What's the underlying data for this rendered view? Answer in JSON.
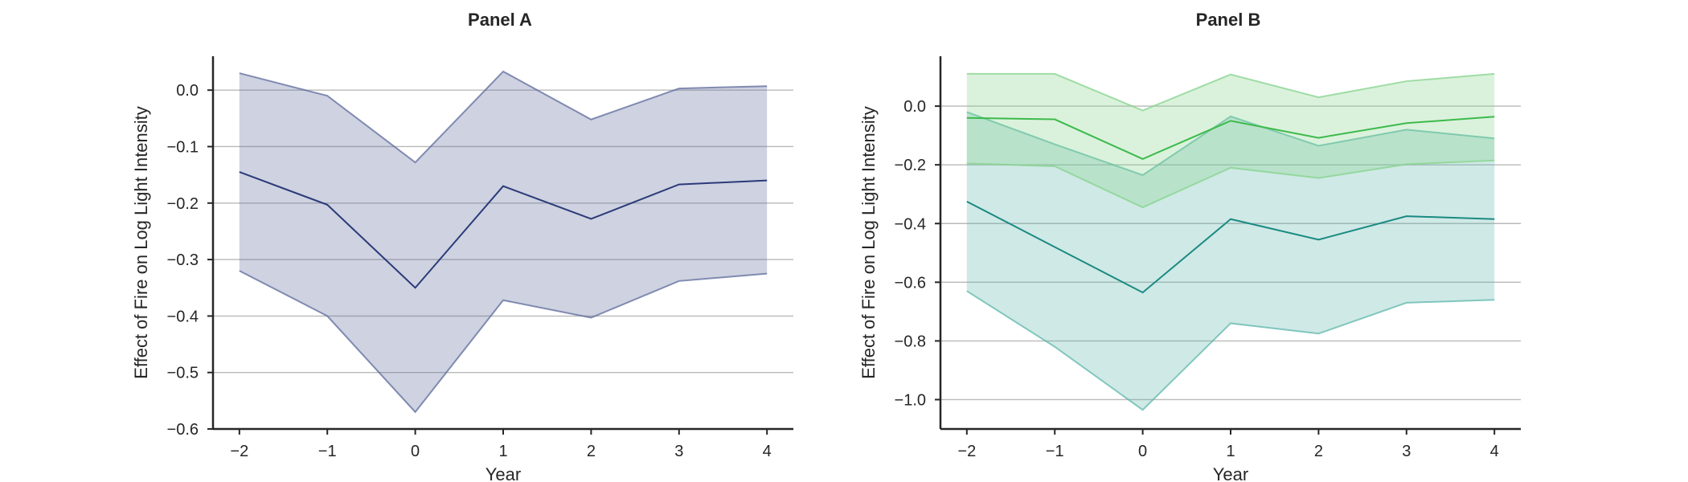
{
  "chart_data": [
    {
      "type": "line",
      "title": "Panel A",
      "xlabel": "Year",
      "ylabel": "Effect of Fire on Log Light Intensity",
      "x": [
        -2,
        -1,
        0,
        1,
        2,
        3,
        4
      ],
      "xticks": [
        "−2",
        "−1",
        "0",
        "1",
        "2",
        "3",
        "4"
      ],
      "yticks": [
        0.0,
        -0.1,
        -0.2,
        -0.3,
        -0.4,
        -0.5,
        -0.6
      ],
      "ytick_labels": [
        "0.0",
        "−0.1",
        "−0.2",
        "−0.3",
        "−0.4",
        "−0.5",
        "−0.6"
      ],
      "ylim": [
        -0.6,
        0.06
      ],
      "xlim": [
        -2.3,
        4.3
      ],
      "grid": "horizontal",
      "series": [
        {
          "color": "#2b3a78",
          "band_color": "#5d6b9b",
          "values": [
            -0.145,
            -0.203,
            -0.35,
            -0.17,
            -0.228,
            -0.167,
            -0.16
          ],
          "lower": [
            -0.32,
            -0.4,
            -0.57,
            -0.372,
            -0.403,
            -0.338,
            -0.325
          ],
          "upper": [
            0.03,
            -0.01,
            -0.128,
            0.033,
            -0.052,
            0.003,
            0.007
          ]
        }
      ]
    },
    {
      "type": "line",
      "title": "Panel B",
      "xlabel": "Year",
      "ylabel": "Effect of Fire on Log Light Intensity",
      "x": [
        -2,
        -1,
        0,
        1,
        2,
        3,
        4
      ],
      "xticks": [
        "−2",
        "−1",
        "0",
        "1",
        "2",
        "3",
        "4"
      ],
      "yticks": [
        0.0,
        -0.2,
        -0.4,
        -0.6,
        -0.8,
        -1.0
      ],
      "ytick_labels": [
        "0.0",
        "−0.2",
        "−0.4",
        "−0.6",
        "−0.8",
        "−1.0"
      ],
      "ylim": [
        -1.1,
        0.17
      ],
      "xlim": [
        -2.3,
        4.3
      ],
      "grid": "horizontal",
      "series": [
        {
          "color": "#1a8a82",
          "band_color": "#5fb7ac",
          "values": [
            -0.325,
            -0.48,
            -0.635,
            -0.385,
            -0.455,
            -0.375,
            -0.385
          ],
          "lower": [
            -0.63,
            -0.82,
            -1.035,
            -0.74,
            -0.775,
            -0.67,
            -0.66
          ],
          "upper": [
            -0.02,
            -0.13,
            -0.235,
            -0.035,
            -0.135,
            -0.08,
            -0.11
          ]
        },
        {
          "color": "#3dba4c",
          "band_color": "#86d38c",
          "values": [
            -0.04,
            -0.045,
            -0.18,
            -0.05,
            -0.108,
            -0.058,
            -0.036
          ],
          "lower": [
            -0.195,
            -0.205,
            -0.345,
            -0.21,
            -0.245,
            -0.198,
            -0.185
          ],
          "upper": [
            0.11,
            0.11,
            -0.015,
            0.108,
            0.03,
            0.085,
            0.11
          ]
        }
      ]
    }
  ]
}
